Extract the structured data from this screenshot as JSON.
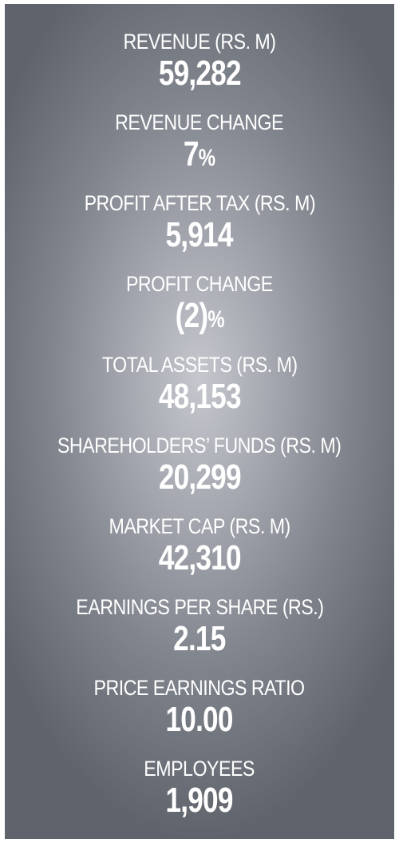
{
  "stats": [
    {
      "label": "REVENUE (RS. M)",
      "value": "59,282",
      "suffix": ""
    },
    {
      "label": "REVENUE CHANGE",
      "value": "7",
      "suffix": "%"
    },
    {
      "label": "PROFIT AFTER TAX (RS. M)",
      "value": "5,914",
      "suffix": ""
    },
    {
      "label": "PROFIT CHANGE",
      "value": "(2)",
      "suffix": "%"
    },
    {
      "label": "TOTAL ASSETS (RS. M)",
      "value": "48,153",
      "suffix": ""
    },
    {
      "label": "SHAREHOLDERS’ FUNDS (RS. M)",
      "value": "20,299",
      "suffix": ""
    },
    {
      "label": "MARKET CAP (RS. M)",
      "value": "42,310",
      "suffix": ""
    },
    {
      "label": "EARNINGS PER SHARE (RS.)",
      "value": "2.15",
      "suffix": ""
    },
    {
      "label": "PRICE EARNINGS RATIO",
      "value": "10.00",
      "suffix": ""
    },
    {
      "label": "EMPLOYEES",
      "value": "1,909",
      "suffix": ""
    }
  ],
  "colors": {
    "text": "#ffffff",
    "panel_center": "#c5c7cd",
    "panel_edge": "#5f636b"
  }
}
